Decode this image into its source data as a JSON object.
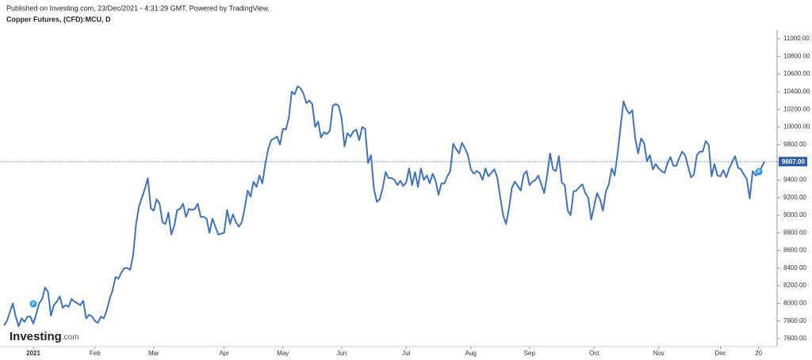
{
  "header": {
    "published": "Published on Investing.com, 23/Dec/2021 - 4:31:29 GMT, Powered by TradingView.",
    "symbol": "Copper Futures, (CFD):MCU, D"
  },
  "logo": {
    "name": "Investing",
    "suffix": ".com"
  },
  "event_markers": [
    {
      "label": "P"
    },
    {
      "label": "P"
    }
  ],
  "chart_data": {
    "type": "line",
    "color": "#3d73c4",
    "categories": [
      null,
      null,
      null,
      null,
      null,
      null,
      null,
      null,
      null,
      null,
      "2021",
      null,
      null,
      null,
      null,
      null,
      null,
      null,
      null,
      null,
      null,
      null,
      null,
      null,
      null,
      null,
      null,
      null,
      null,
      null,
      null,
      "Feb",
      null,
      null,
      null,
      null,
      null,
      null,
      null,
      null,
      null,
      null,
      null,
      null,
      null,
      null,
      null,
      null,
      null,
      null,
      null,
      "Mar",
      null,
      null,
      null,
      null,
      null,
      null,
      null,
      null,
      null,
      null,
      null,
      null,
      null,
      null,
      null,
      null,
      null,
      null,
      null,
      null,
      null,
      null,
      null,
      "Apr",
      null,
      null,
      null,
      null,
      null,
      null,
      null,
      null,
      null,
      null,
      null,
      null,
      null,
      null,
      null,
      null,
      null,
      null,
      null,
      "May",
      null,
      null,
      null,
      null,
      null,
      null,
      null,
      null,
      null,
      null,
      null,
      null,
      null,
      null,
      null,
      null,
      null,
      null,
      null,
      "Jun",
      null,
      null,
      null,
      null,
      null,
      null,
      null,
      null,
      null,
      null,
      null,
      null,
      null,
      null,
      null,
      null,
      null,
      null,
      null,
      null,
      null,
      "Jul",
      null,
      null,
      null,
      null,
      null,
      null,
      null,
      null,
      null,
      null,
      null,
      null,
      null,
      null,
      null,
      null,
      null,
      null,
      null,
      null,
      null,
      "Aug",
      null,
      null,
      null,
      null,
      null,
      null,
      null,
      null,
      null,
      null,
      null,
      null,
      null,
      null,
      null,
      null,
      null,
      null,
      null,
      "Sep",
      null,
      null,
      null,
      null,
      null,
      null,
      null,
      null,
      null,
      null,
      null,
      null,
      null,
      null,
      null,
      null,
      null,
      null,
      null,
      null,
      null,
      "Oct",
      null,
      null,
      null,
      null,
      null,
      null,
      null,
      null,
      null,
      null,
      null,
      null,
      null,
      null,
      null,
      null,
      null,
      null,
      null,
      null,
      null,
      "Nov",
      null,
      null,
      null,
      null,
      null,
      null,
      null,
      null,
      null,
      null,
      null,
      null,
      null,
      null,
      null,
      null,
      null,
      null,
      null,
      null,
      "Dec",
      null,
      null,
      null,
      null,
      null,
      null,
      null,
      null,
      null,
      null,
      null,
      null,
      "20",
      null,
      null
    ],
    "values": [
      7750,
      7800,
      7900,
      8000,
      7850,
      7740,
      7830,
      7790,
      7850,
      7850,
      7770,
      7880,
      8000,
      8050,
      8180,
      8130,
      7860,
      7980,
      8020,
      8080,
      7950,
      7980,
      7960,
      8050,
      8020,
      8000,
      7980,
      8030,
      7830,
      7870,
      7850,
      7800,
      7780,
      7850,
      7830,
      7920,
      8050,
      8150,
      8300,
      8280,
      8350,
      8400,
      8400,
      8380,
      8550,
      8900,
      9100,
      9200,
      9300,
      9420,
      9080,
      9050,
      9180,
      9130,
      8920,
      8900,
      9030,
      8780,
      8880,
      9060,
      9070,
      9130,
      8980,
      9070,
      9060,
      9070,
      9130,
      8980,
      8980,
      8960,
      8800,
      8960,
      8870,
      8780,
      8790,
      8800,
      9060,
      8900,
      9010,
      8920,
      8870,
      8920,
      9080,
      9280,
      9210,
      9380,
      9320,
      9450,
      9360,
      9580,
      9750,
      9850,
      9870,
      9890,
      9800,
      9980,
      9970,
      10100,
      10400,
      10370,
      10460,
      10440,
      10380,
      10270,
      10300,
      10260,
      10000,
      10060,
      9880,
      9940,
      9920,
      9960,
      10240,
      10260,
      10240,
      10100,
      9780,
      9930,
      9890,
      9950,
      9970,
      9850,
      10000,
      9980,
      9590,
      9680,
      9300,
      9150,
      9180,
      9310,
      9490,
      9420,
      9420,
      9400,
      9340,
      9390,
      9330,
      9370,
      9530,
      9340,
      9490,
      9320,
      9530,
      9400,
      9450,
      9360,
      9470,
      9390,
      9230,
      9360,
      9360,
      9440,
      9500,
      9810,
      9750,
      9700,
      9820,
      9760,
      9680,
      9520,
      9470,
      9500,
      9480,
      9400,
      9530,
      9440,
      9480,
      9520,
      9430,
      9210,
      9000,
      8900,
      9080,
      9310,
      9380,
      9330,
      9280,
      9460,
      9500,
      9340,
      9380,
      9400,
      9450,
      9350,
      9250,
      9450,
      9700,
      9520,
      9500,
      9670,
      9370,
      9340,
      9050,
      9000,
      9270,
      9280,
      9320,
      9350,
      9250,
      9200,
      8950,
      9100,
      9250,
      9180,
      9050,
      9270,
      9350,
      9530,
      9450,
      9700,
      10000,
      10290,
      10200,
      10150,
      10190,
      9870,
      9700,
      9870,
      9820,
      9610,
      9680,
      9520,
      9580,
      9530,
      9500,
      9480,
      9590,
      9660,
      9560,
      9560,
      9650,
      9720,
      9680,
      9550,
      9430,
      9460,
      9680,
      9720,
      9720,
      9840,
      9800,
      9440,
      9580,
      9450,
      9440,
      9510,
      9430,
      9530,
      9600,
      9670,
      9540,
      9520,
      9460,
      9410,
      9190,
      9500,
      9450,
      9470,
      9540,
      9607
    ],
    "current_price": 9607,
    "current_price_label": "9607.00",
    "ylim": [
      7600,
      11000
    ],
    "yticks": [
      {
        "value": 7600,
        "label": "7600.00"
      },
      {
        "value": 7800,
        "label": "7800.00"
      },
      {
        "value": 8000,
        "label": "8000.00"
      },
      {
        "value": 8200,
        "label": "8200.00"
      },
      {
        "value": 8400,
        "label": "8400.00"
      },
      {
        "value": 8600,
        "label": "8600.00"
      },
      {
        "value": 8800,
        "label": "8800.00"
      },
      {
        "value": 9000,
        "label": "9000.00"
      },
      {
        "value": 9200,
        "label": "9200.00"
      },
      {
        "value": 9400,
        "label": "9400.00"
      },
      {
        "value": 9600,
        "label": "9600.00"
      },
      {
        "value": 9800,
        "label": "9800.00"
      },
      {
        "value": 10000,
        "label": "10000.00"
      },
      {
        "value": 10200,
        "label": "10200.00"
      },
      {
        "value": 10400,
        "label": "10400.00"
      },
      {
        "value": 10600,
        "label": "10600.00"
      },
      {
        "value": 10800,
        "label": "10800.00"
      },
      {
        "value": 11000,
        "label": "11000.00"
      }
    ],
    "grid": false
  }
}
